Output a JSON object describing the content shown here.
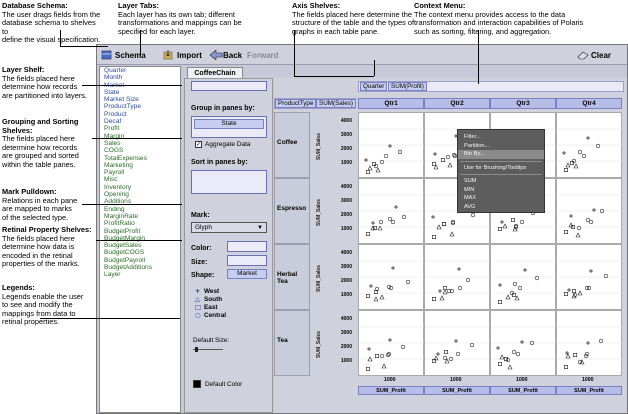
{
  "annotations": {
    "schema": {
      "title": "Database Schema:",
      "desc": [
        "The user drags fields from the",
        "database schema to shelves to",
        "define the visual specification."
      ]
    },
    "layer_tabs": {
      "title": "Layer Tabs:",
      "desc": [
        "Each layer has its own tab; different",
        "transformations and mappings can be",
        "specified for each layer."
      ]
    },
    "axis_shelves": {
      "title": "Axis Shelves:",
      "desc": [
        "The fields placed here determine the",
        "structure of the table and the types of",
        "graphs in each table pane."
      ]
    },
    "context_menu": {
      "title": "Context Menu:",
      "desc": [
        "The context menu provides access to the data",
        "transformation and interaction capabilities of Polaris",
        "such as sorting, filtering, and aggregation."
      ]
    },
    "layer_shelf": {
      "title": "Layer Shelf:",
      "desc": [
        "The fields placed here",
        "determine how records",
        "are partitioned into layers."
      ]
    },
    "grouping": {
      "title": "Grouping and Sorting",
      "title2": "Shelves:",
      "desc": [
        "The fields placed here",
        "determine how records",
        "are grouped and sorted",
        "within the table panes."
      ]
    },
    "mark": {
      "title": "Mark Pulldown:",
      "desc": [
        "Relations in each pane",
        "are mapped to marks",
        "of the selected type."
      ]
    },
    "retinal": {
      "title": "Retinal Property Shelves:",
      "desc": [
        "The fields placed here",
        "determine how data is",
        "encoded in the retinal",
        "properties of the marks."
      ]
    },
    "legends": {
      "title": "Legends:",
      "desc": [
        "Legends enable the user",
        "to see and modify the",
        "mappings from data to",
        "retinal properties."
      ]
    }
  },
  "toolbar": {
    "schema": "Schema",
    "import": "Import",
    "back": "Back",
    "forward": "Forward",
    "clear": "Clear"
  },
  "schema_fields": [
    "Quarter",
    "Month",
    "Market",
    "State",
    "Market Size",
    "ProductType",
    "Product",
    "Decaf",
    "Profit",
    "Margin",
    "Sales",
    "COGS",
    "TotalExpenses",
    "Marketing",
    "Payroll",
    "Misc",
    "Inventory",
    "Opening",
    "Additions",
    "Ending",
    "MarginRate",
    "ProfitRatio",
    "BudgetProfit",
    "BudgetMargin",
    "BudgetSales",
    "BudgetCOGS",
    "BudgetPayroll",
    "BudgetAdditions",
    "Layer"
  ],
  "layer_tab": "CoffeeChain",
  "panel": {
    "group_label": "Group in panes by:",
    "group_pill": "State",
    "aggregate_label": "Aggregate Data",
    "sort_label": "Sort in panes by:",
    "mark_label": "Mark:",
    "mark_value": "Glyph",
    "color_label": "Color:",
    "size_label": "Size:",
    "shape_label": "Shape:",
    "shape_pill": "Market",
    "legend": [
      {
        "sym": "+",
        "label": "West"
      },
      {
        "sym": "△",
        "label": "South"
      },
      {
        "sym": "□",
        "label": "East"
      },
      {
        "sym": "○",
        "label": "Central"
      }
    ],
    "default_size": "Default Size:",
    "default_color": "Default Color"
  },
  "shelves": {
    "columns": [
      "Quarter",
      "SUM(Profit)"
    ],
    "rows": [
      "ProductType",
      "SUM(Sales)"
    ]
  },
  "table": {
    "col_headers": [
      "Qtr1",
      "Qtr2",
      "Qtr3",
      "Qtr4"
    ],
    "row_headers": [
      "Coffee",
      "Espresso",
      "Herbal Tea",
      "Tea"
    ],
    "y_label": "SUM_Sales",
    "y_ticks": [
      "4000",
      "3000",
      "2000",
      "1000"
    ],
    "x_tick": "1000",
    "x_label": "SUM_Profit"
  },
  "context_menu": {
    "items": [
      "Filter...",
      "Partition...",
      "Bin By...",
      "Use for Brushing/Tooltips",
      "SUM",
      "MIN",
      "MAX",
      "AVG"
    ],
    "selected": "Bin By..."
  }
}
